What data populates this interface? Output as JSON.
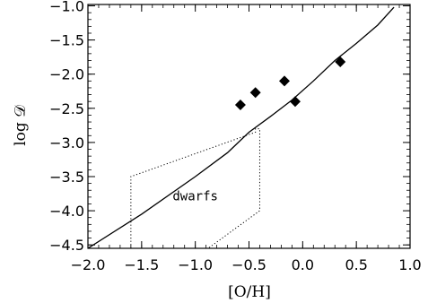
{
  "chart_data": {
    "type": "scatter",
    "title": "",
    "xlabel": "[O/H]",
    "ylabel": "log 𝒟",
    "xlim": [
      -2.0,
      1.0
    ],
    "ylim": [
      -4.55,
      -0.98
    ],
    "grid": false,
    "x_ticks": [
      -2.0,
      -1.5,
      -1.0,
      -0.5,
      0.0,
      0.5,
      1.0
    ],
    "x_tick_labels": [
      "−2.0",
      "−1.5",
      "−1.0",
      "−0.5",
      "0.0",
      "0.5",
      "1.0"
    ],
    "y_ticks": [
      -1.0,
      -1.5,
      -2.0,
      -2.5,
      -3.0,
      -3.5,
      -4.0,
      -4.5
    ],
    "y_tick_labels": [
      "−1.0",
      "−1.5",
      "−2.0",
      "−2.5",
      "−3.0",
      "−3.5",
      "−4.0",
      "−4.5"
    ],
    "series": [
      {
        "style": "line",
        "x": [
          -2.0,
          -1.5,
          -1.0,
          -0.7,
          -0.5,
          -0.3,
          -0.1,
          0.1,
          0.3,
          0.5,
          0.7,
          0.85
        ],
        "y": [
          -4.55,
          -4.05,
          -3.5,
          -3.15,
          -2.85,
          -2.62,
          -2.38,
          -2.1,
          -1.8,
          -1.55,
          -1.28,
          -1.02
        ]
      },
      {
        "style": "markers",
        "marker": "diamond",
        "x": [
          -0.58,
          -0.44,
          -0.17,
          -0.07,
          0.35
        ],
        "y": [
          -2.45,
          -2.27,
          -2.1,
          -2.4,
          -1.82
        ]
      },
      {
        "style": "dotted",
        "x": [
          -1.6,
          -1.6,
          -0.44,
          -0.44,
          -0.4,
          -0.4,
          -0.88
        ],
        "y": [
          -4.55,
          -3.5,
          -2.85,
          -2.8,
          -2.8,
          -4.0,
          -4.55
        ]
      }
    ],
    "annotations": [
      {
        "text": "dwarfs",
        "x": -1.0,
        "y": -3.85
      }
    ]
  }
}
